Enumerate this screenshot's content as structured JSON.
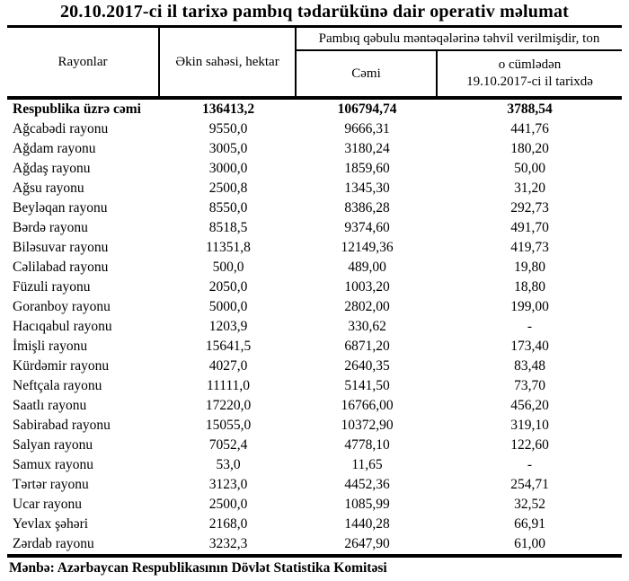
{
  "title": "20.10.2017-ci il tarixə pambıq tədarükünə dair operativ məlumat",
  "table": {
    "headers": {
      "rayonlar": "Rayonlar",
      "ekin": "Əkin sahəsi, hektar",
      "group": "Pambıq qəbulu məntəqələrinə təhvil verilmişdir, ton",
      "cemi": "Cəmi",
      "sub1": "o cümlədən",
      "sub2": "19.10.2017-ci il tarixdə"
    },
    "rows": [
      {
        "label": "Respublika üzrə cəmi",
        "ekin": "136413,2",
        "cemi": "106794,74",
        "daily": "3788,54",
        "is_total": true
      },
      {
        "label": "Ağcabədi rayonu",
        "ekin": "9550,0",
        "cemi": "9666,31",
        "daily": "441,76"
      },
      {
        "label": "Ağdam rayonu",
        "ekin": "3005,0",
        "cemi": "3180,24",
        "daily": "180,20"
      },
      {
        "label": "Ağdaş rayonu",
        "ekin": "3000,0",
        "cemi": "1859,60",
        "daily": "50,00"
      },
      {
        "label": "Ağsu rayonu",
        "ekin": "2500,8",
        "cemi": "1345,30",
        "daily": "31,20"
      },
      {
        "label": "Beyləqan rayonu",
        "ekin": "8550,0",
        "cemi": "8386,28",
        "daily": "292,73"
      },
      {
        "label": "Bərdə rayonu",
        "ekin": "8518,5",
        "cemi": "9374,60",
        "daily": "491,70"
      },
      {
        "label": "Biləsuvar rayonu",
        "ekin": "11351,8",
        "cemi": "12149,36",
        "daily": "419,73"
      },
      {
        "label": "Cəlilabad rayonu",
        "ekin": "500,0",
        "cemi": "489,00",
        "daily": "19,80"
      },
      {
        "label": "Füzuli rayonu",
        "ekin": "2050,0",
        "cemi": "1003,20",
        "daily": "18,80"
      },
      {
        "label": "Goranboy rayonu",
        "ekin": "5000,0",
        "cemi": "2802,00",
        "daily": "199,00"
      },
      {
        "label": "Hacıqabul rayonu",
        "ekin": "1203,9",
        "cemi": "330,62",
        "daily": "-"
      },
      {
        "label": "İmişli rayonu",
        "ekin": "15641,5",
        "cemi": "6871,20",
        "daily": "173,40"
      },
      {
        "label": "Kürdəmir rayonu",
        "ekin": "4027,0",
        "cemi": "2640,35",
        "daily": "83,48"
      },
      {
        "label": "Neftçala rayonu",
        "ekin": "11111,0",
        "cemi": "5141,50",
        "daily": "73,70"
      },
      {
        "label": "Saatlı rayonu",
        "ekin": "17220,0",
        "cemi": "16766,00",
        "daily": "456,20"
      },
      {
        "label": "Sabirabad rayonu",
        "ekin": "15055,0",
        "cemi": "10372,90",
        "daily": "319,10"
      },
      {
        "label": "Salyan rayonu",
        "ekin": "7052,4",
        "cemi": "4778,10",
        "daily": "122,60"
      },
      {
        "label": "Samux rayonu",
        "ekin": "53,0",
        "cemi": "11,65",
        "daily": "-"
      },
      {
        "label": "Tərtər rayonu",
        "ekin": "3123,0",
        "cemi": "4452,36",
        "daily": "254,71"
      },
      {
        "label": "Ucar rayonu",
        "ekin": "2500,0",
        "cemi": "1085,99",
        "daily": "32,52"
      },
      {
        "label": "Yevlax şəhəri",
        "ekin": "2168,0",
        "cemi": "1440,28",
        "daily": "66,91"
      },
      {
        "label": "Zərdab rayonu",
        "ekin": "3232,3",
        "cemi": "2647,90",
        "daily": "61,00"
      }
    ]
  },
  "footer": "Mənbə: Azərbaycan Respublikasının Dövlət Statistika Komitəsi"
}
